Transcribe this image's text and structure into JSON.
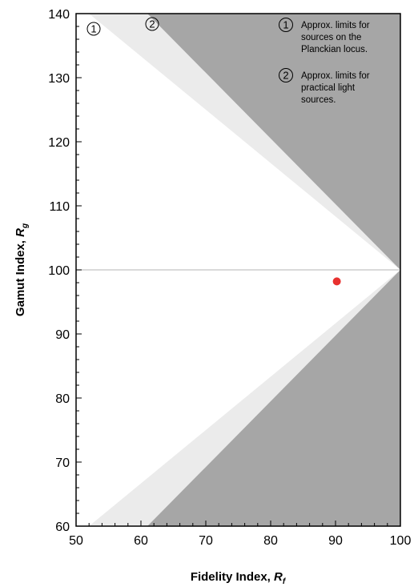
{
  "chart_data": {
    "type": "scatter",
    "xlabel": "Fidelity Index, ",
    "xlabel_sub": "R",
    "xlabel_subscript": "f",
    "ylabel": "Gamut Index, ",
    "ylabel_sub": "R",
    "ylabel_subscript": "g",
    "xlim": [
      50,
      100
    ],
    "ylim": [
      60,
      140
    ],
    "xticks": [
      50,
      60,
      70,
      80,
      90,
      100
    ],
    "yticks": [
      60,
      70,
      80,
      90,
      100,
      110,
      120,
      130,
      140
    ],
    "reference_line_y": 100,
    "regions": [
      {
        "id": "1",
        "label": "Approx. limits for sources on the Planckian locus.",
        "label_lines": [
          "Approx. limits for",
          "sources on the",
          "Planckian locus."
        ],
        "apex": [
          100,
          100
        ],
        "upper_x_at_140": 52,
        "lower_x_at_60": 52,
        "color": "#ebebeb"
      },
      {
        "id": "2",
        "label": "Approx. limits for practical light sources.",
        "label_lines": [
          "Approx. limits for",
          "practical light",
          "sources."
        ],
        "apex": [
          100,
          100
        ],
        "upper_x_at_140": 61,
        "lower_x_at_60": 61,
        "color": "#ffffff"
      }
    ],
    "outside_color": "#a6a6a6",
    "points": [
      {
        "x": 90.2,
        "y": 98.2,
        "color": "#e8312f"
      }
    ]
  }
}
